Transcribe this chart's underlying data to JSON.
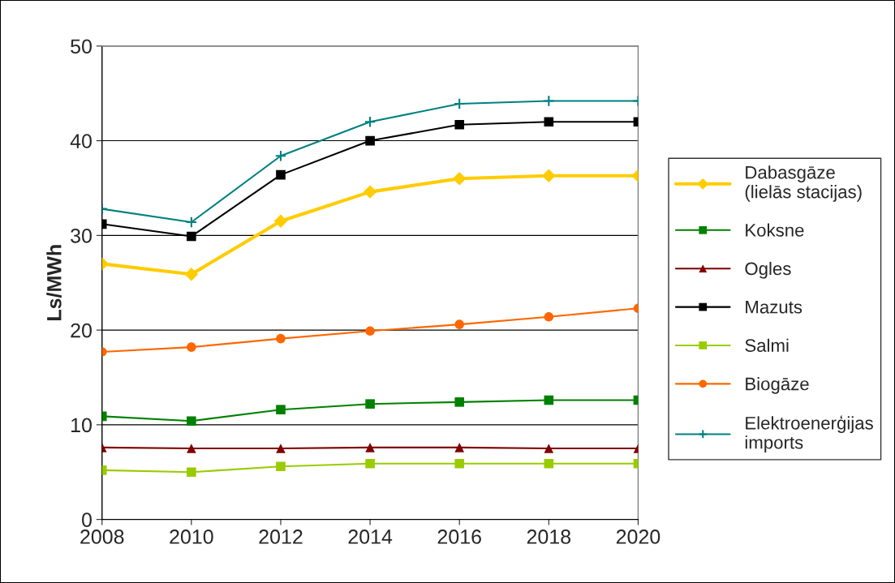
{
  "chart_data": {
    "type": "line",
    "ylabel": "Ls/MWh",
    "x": [
      2008,
      2010,
      2012,
      2014,
      2016,
      2018,
      2020
    ],
    "xlim": [
      2008,
      2020
    ],
    "xticks": [
      2008,
      2010,
      2012,
      2014,
      2016,
      2018,
      2020
    ],
    "ylim": [
      0,
      50
    ],
    "yticks": [
      0,
      10,
      20,
      30,
      40,
      50
    ],
    "grid": "y",
    "legend": "right",
    "line_style": "solid",
    "series": [
      {
        "name": "Dabasgāze\n(lielās stacijas)",
        "color": "#ffcc00",
        "marker": "diamond",
        "values": [
          27.0,
          25.9,
          31.5,
          34.6,
          36.0,
          36.3,
          36.3
        ]
      },
      {
        "name": "Koksne",
        "color": "#008000",
        "marker": "square",
        "values": [
          10.9,
          10.4,
          11.6,
          12.2,
          12.4,
          12.6,
          12.6
        ]
      },
      {
        "name": "Ogles",
        "color": "#800000",
        "marker": "triangle",
        "values": [
          7.6,
          7.5,
          7.5,
          7.6,
          7.6,
          7.5,
          7.5
        ]
      },
      {
        "name": "Mazuts",
        "color": "#000000",
        "marker": "square",
        "values": [
          31.2,
          29.9,
          36.4,
          40.0,
          41.7,
          42.0,
          42.0
        ]
      },
      {
        "name": "Salmi",
        "color": "#99cc00",
        "marker": "square",
        "values": [
          5.2,
          5.0,
          5.6,
          5.9,
          5.9,
          5.9,
          5.9
        ]
      },
      {
        "name": "Biogāze",
        "color": "#ff6600",
        "marker": "circle",
        "values": [
          17.7,
          18.2,
          19.1,
          19.9,
          20.6,
          21.4,
          22.3
        ]
      },
      {
        "name": "Elektroenerģijas\nimports",
        "color": "#008080",
        "marker": "cross",
        "values": [
          32.8,
          31.4,
          38.4,
          42.0,
          43.9,
          44.2,
          44.2
        ]
      }
    ]
  }
}
